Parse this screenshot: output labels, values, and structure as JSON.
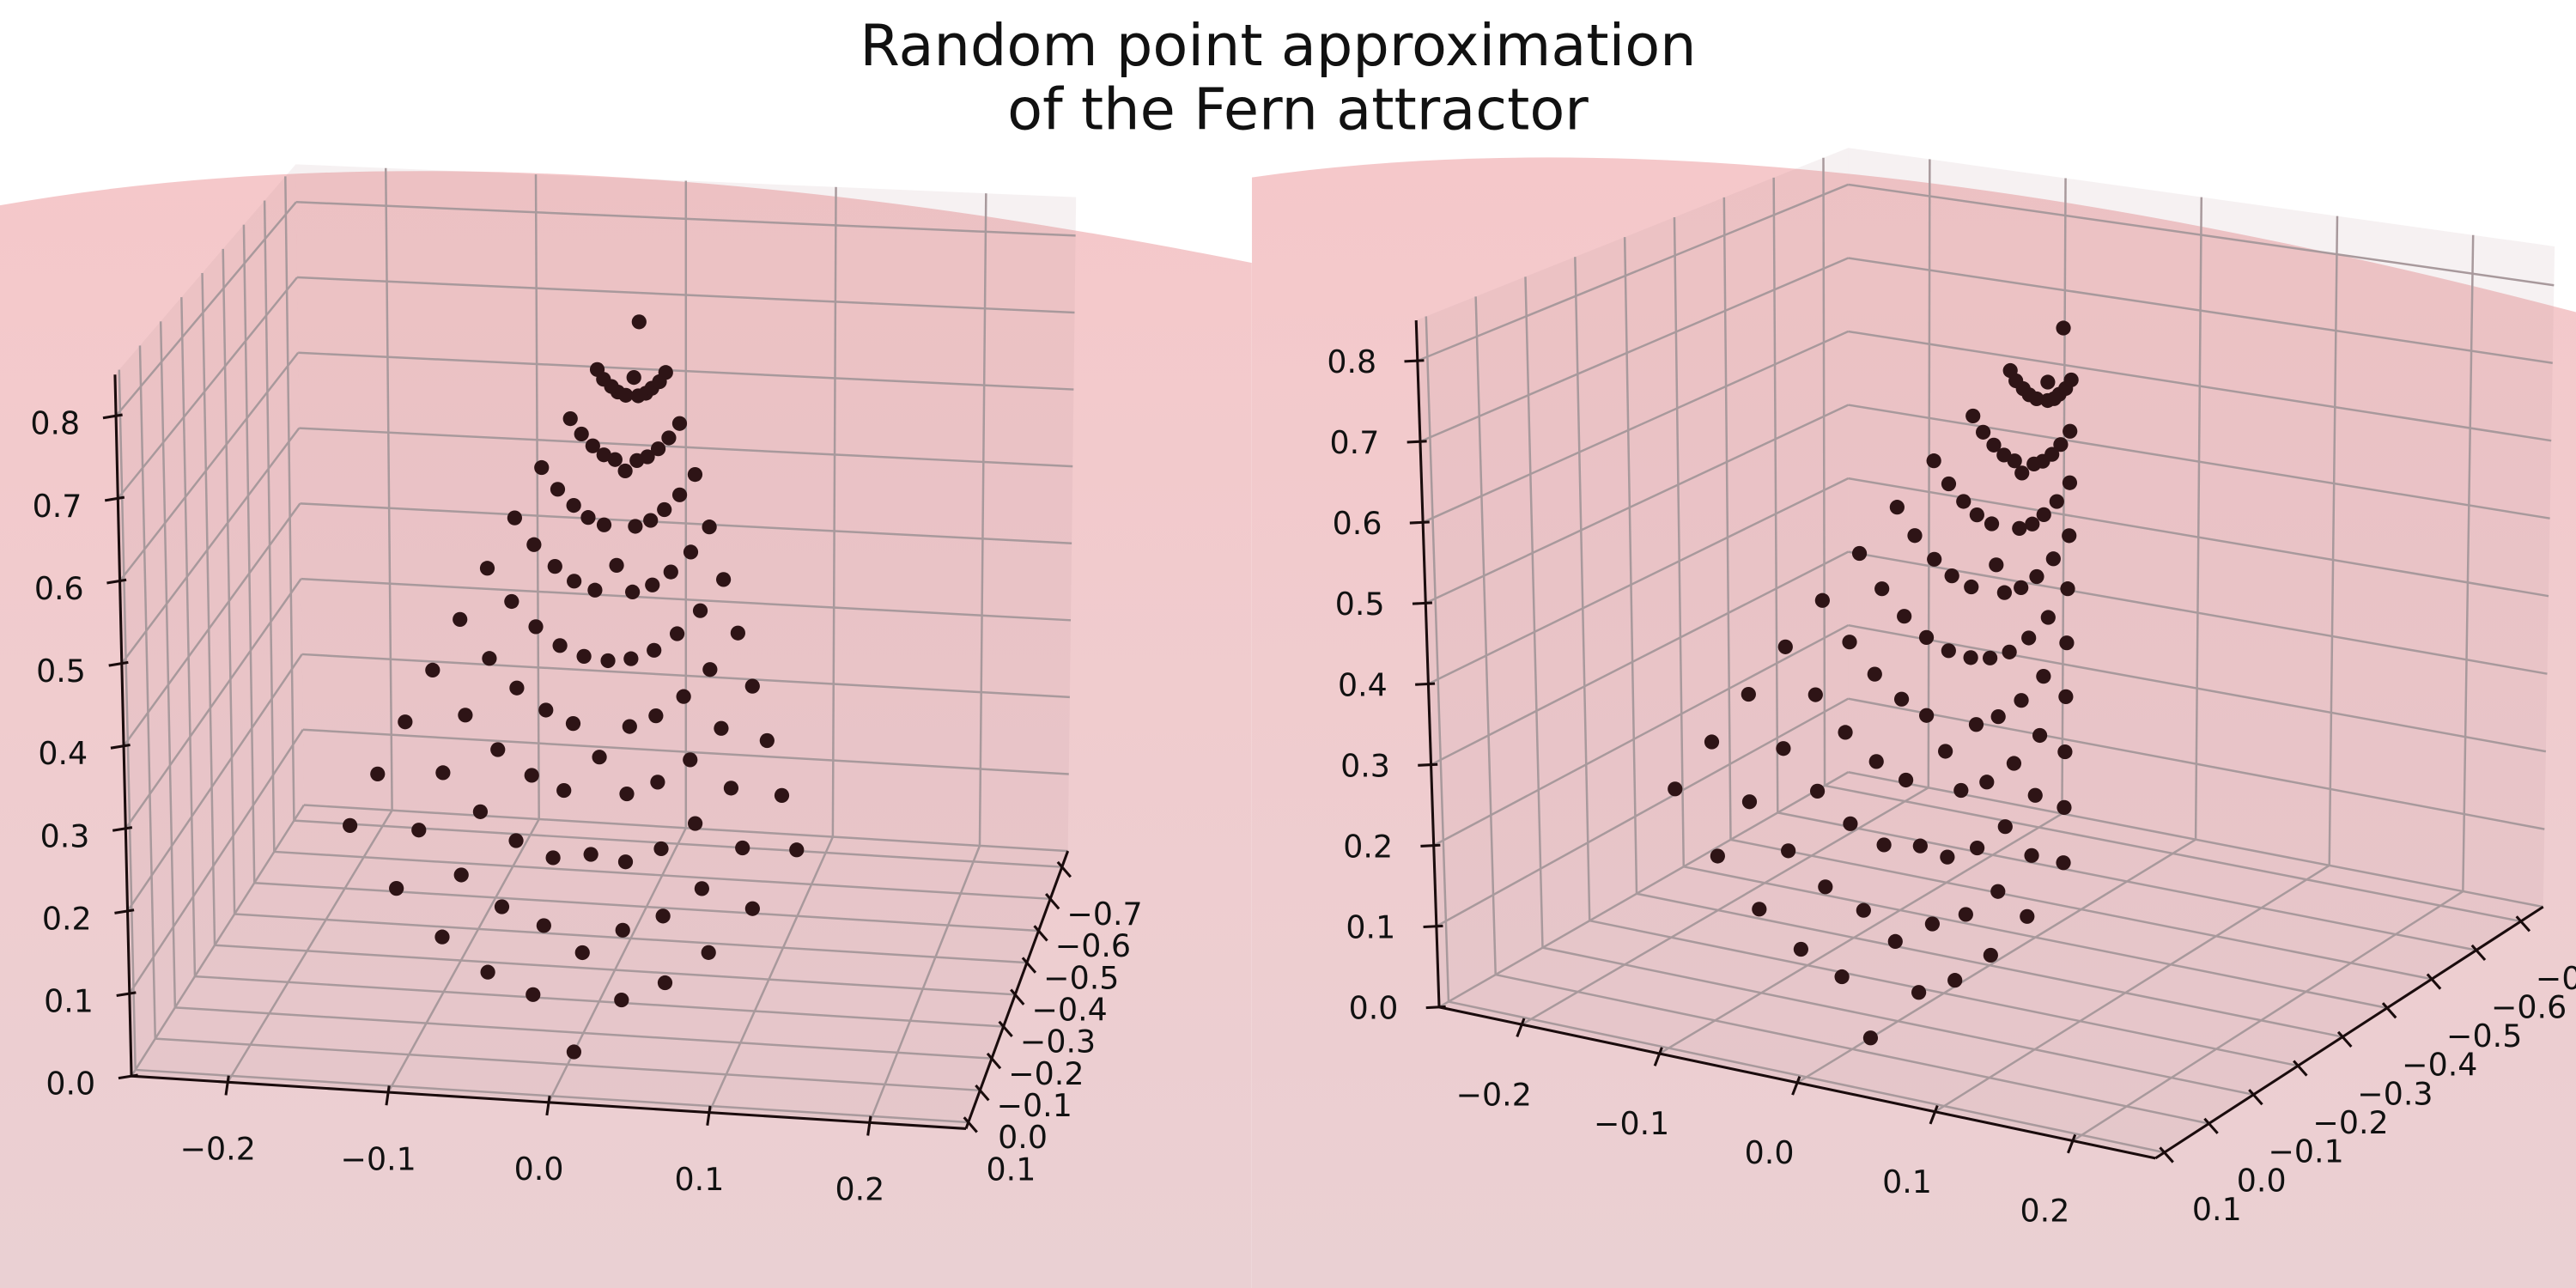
{
  "chart_data": {
    "type": "scatter3d",
    "title": [
      "Random point approximation",
      "of the Fern attractor"
    ],
    "color": "#2e1416",
    "xlim": [
      -0.26,
      0.26
    ],
    "ylim": [
      -0.75,
      0.12
    ],
    "zlim": [
      0,
      0.85
    ],
    "xticks": [
      {
        "value": -0.2,
        "label": "−0.2"
      },
      {
        "value": -0.1,
        "label": "−0.1"
      },
      {
        "value": 0,
        "label": "0.0"
      },
      0.1,
      0.2
    ],
    "yticks": [
      0.1,
      {
        "value": 0,
        "label": "0.0"
      },
      {
        "value": -0.1,
        "label": "−0.1"
      },
      {
        "value": -0.2,
        "label": "−0.2"
      },
      {
        "value": -0.3,
        "label": "−0.3"
      },
      {
        "value": -0.4,
        "label": "−0.4"
      },
      {
        "value": -0.5,
        "label": "−0.5"
      },
      {
        "value": -0.6,
        "label": "−0.6"
      },
      {
        "value": -0.7,
        "label": "−0.7"
      }
    ],
    "zticks": [
      {
        "value": 0,
        "label": "0.0"
      },
      0.1,
      0.2,
      0.3,
      0.4,
      0.5,
      0.6,
      0.7,
      0.8
    ],
    "x": [
      -0.028,
      -0.056,
      -0.084,
      -0.112,
      -0.14,
      0.028,
      0.056,
      0.084,
      0.112,
      0.14,
      -0.025,
      -0.051,
      -0.076,
      -0.102,
      -0.127,
      0.025,
      0.051,
      0.076,
      0.102,
      0.127,
      -0.023,
      -0.046,
      -0.068,
      -0.091,
      -0.114,
      0.023,
      0.046,
      0.068,
      0.091,
      0.114,
      -0.02,
      -0.04,
      -0.061,
      -0.081,
      -0.101,
      0.02,
      0.04,
      0.061,
      0.081,
      0.101,
      -0.018,
      -0.035,
      -0.053,
      -0.07,
      -0.088,
      0.018,
      0.035,
      0.053,
      0.07,
      0.088,
      -0.015,
      -0.03,
      -0.045,
      -0.06,
      -0.075,
      0.015,
      0.03,
      0.045,
      0.06,
      0.075,
      -0.012,
      -0.025,
      -0.037,
      -0.05,
      -0.062,
      0.012,
      0.025,
      0.037,
      0.05,
      0.062,
      -0.01,
      -0.02,
      -0.029,
      -0.039,
      -0.049,
      0.01,
      0.02,
      0.029,
      0.039,
      0.049,
      -0.007,
      -0.014,
      -0.021,
      -0.028,
      -0.035,
      0.007,
      0.014,
      0.021,
      0.028,
      0.035,
      -0.004,
      -0.009,
      -0.013,
      -0.018,
      -0.022,
      0.004,
      0.009,
      0.013,
      0.018,
      0.022,
      0,
      0,
      0,
      0,
      0,
      0,
      0,
      0,
      0
    ],
    "y": [
      -0.062,
      -0.057,
      -0.051,
      -0.046,
      -0.04,
      -0.062,
      -0.057,
      -0.051,
      -0.046,
      -0.04,
      -0.101,
      -0.096,
      -0.091,
      -0.086,
      -0.081,
      -0.101,
      -0.096,
      -0.091,
      -0.086,
      -0.081,
      -0.14,
      -0.136,
      -0.131,
      -0.127,
      -0.122,
      -0.14,
      -0.136,
      -0.131,
      -0.127,
      -0.122,
      -0.179,
      -0.175,
      -0.171,
      -0.167,
      -0.163,
      -0.179,
      -0.175,
      -0.171,
      -0.167,
      -0.163,
      -0.218,
      -0.215,
      -0.211,
      -0.208,
      -0.204,
      -0.218,
      -0.215,
      -0.211,
      -0.208,
      -0.204,
      -0.257,
      -0.254,
      -0.251,
      -0.248,
      -0.245,
      -0.257,
      -0.254,
      -0.251,
      -0.248,
      -0.245,
      -0.297,
      -0.294,
      -0.292,
      -0.289,
      -0.287,
      -0.297,
      -0.294,
      -0.292,
      -0.289,
      -0.287,
      -0.335,
      -0.333,
      -0.331,
      -0.329,
      -0.327,
      -0.335,
      -0.333,
      -0.331,
      -0.329,
      -0.327,
      -0.375,
      -0.373,
      -0.372,
      -0.37,
      -0.369,
      -0.375,
      -0.373,
      -0.372,
      -0.37,
      -0.369,
      -0.413,
      -0.412,
      -0.411,
      -0.41,
      -0.41,
      -0.413,
      -0.412,
      -0.411,
      -0.41,
      -0.41,
      -0.04,
      -0.095,
      -0.15,
      -0.205,
      -0.26,
      -0.315,
      -0.37,
      -0.425,
      -0.458
    ],
    "z": [
      0.058,
      0.084,
      0.126,
      0.184,
      0.26,
      0.058,
      0.084,
      0.126,
      0.184,
      0.26,
      0.128,
      0.15,
      0.188,
      0.242,
      0.31,
      0.128,
      0.15,
      0.188,
      0.242,
      0.31,
      0.197,
      0.217,
      0.252,
      0.299,
      0.361,
      0.197,
      0.217,
      0.252,
      0.299,
      0.361,
      0.266,
      0.284,
      0.315,
      0.357,
      0.412,
      0.266,
      0.284,
      0.315,
      0.357,
      0.412,
      0.335,
      0.351,
      0.378,
      0.414,
      0.462,
      0.335,
      0.351,
      0.378,
      0.414,
      0.462,
      0.405,
      0.418,
      0.441,
      0.472,
      0.513,
      0.405,
      0.418,
      0.441,
      0.472,
      0.513,
      0.474,
      0.485,
      0.503,
      0.53,
      0.563,
      0.474,
      0.485,
      0.503,
      0.53,
      0.563,
      0.543,
      0.552,
      0.567,
      0.587,
      0.614,
      0.543,
      0.552,
      0.567,
      0.587,
      0.614,
      0.612,
      0.618,
      0.629,
      0.644,
      0.663,
      0.612,
      0.618,
      0.629,
      0.644,
      0.663,
      0.681,
      0.685,
      0.692,
      0.701,
      0.713,
      0.681,
      0.685,
      0.692,
      0.701,
      0.713,
      0,
      0.1,
      0.2,
      0.3,
      0.4,
      0.5,
      0.6,
      0.7,
      0.76
    ]
  }
}
